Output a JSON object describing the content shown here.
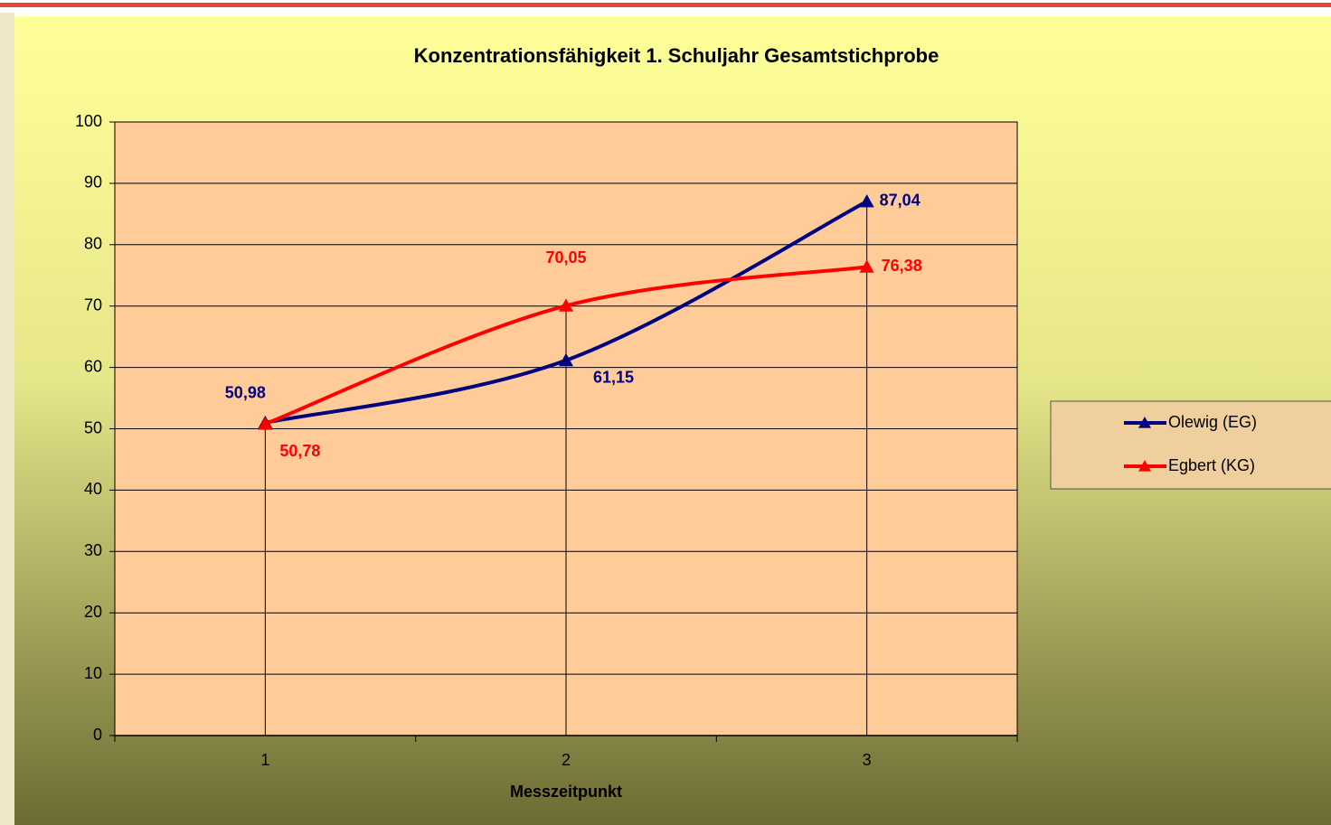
{
  "chart_data": {
    "type": "line",
    "title": "Konzentrationsfähigkeit   1. Schuljahr Gesamtstichprobe",
    "x_label": "Messzeitpunkt",
    "categories": [
      "1",
      "2",
      "3"
    ],
    "series": [
      {
        "name": "Olewig (EG)",
        "color": "#000080",
        "values": [
          50.98,
          61.15,
          87.04
        ],
        "value_labels": [
          "50,98",
          "61,15",
          "87,04"
        ]
      },
      {
        "name": "Egbert (KG)",
        "color": "#ff0000",
        "values": [
          50.78,
          70.05,
          76.38
        ],
        "value_labels": [
          "50,78",
          "70,05",
          "76,38"
        ]
      }
    ],
    "ylim": [
      0,
      100
    ],
    "yticks": [
      0,
      10,
      20,
      30,
      40,
      50,
      60,
      70,
      80,
      90,
      100
    ],
    "grid": true,
    "smooth": true,
    "drop_lines": true,
    "legend": "right"
  }
}
